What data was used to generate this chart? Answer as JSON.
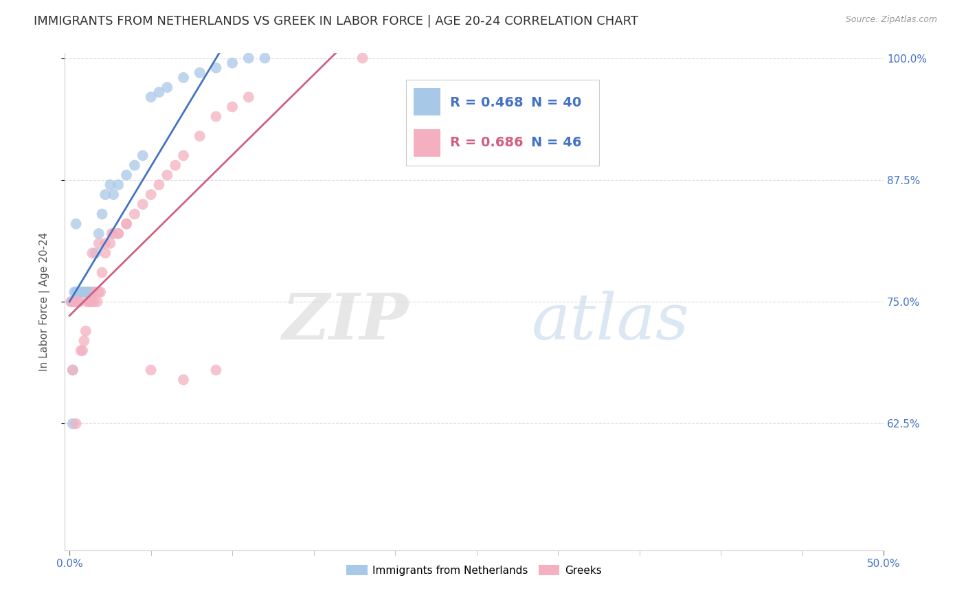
{
  "title": "IMMIGRANTS FROM NETHERLANDS VS GREEK IN LABOR FORCE | AGE 20-24 CORRELATION CHART",
  "source": "Source: ZipAtlas.com",
  "ylabel_label": "In Labor Force | Age 20-24",
  "xlim": [
    0.0,
    0.5
  ],
  "ylim": [
    0.5,
    1.005
  ],
  "x_tick_left": 0.0,
  "x_tick_right": 0.5,
  "y_ticks": [
    0.625,
    0.75,
    0.875,
    1.0
  ],
  "y_tick_labels_right": [
    "62.5%",
    "75.0%",
    "87.5%",
    "100.0%"
  ],
  "x_tick_labels_bottom": [
    "0.0%",
    "50.0%"
  ],
  "blue_R": 0.468,
  "blue_N": 40,
  "pink_R": 0.686,
  "pink_N": 46,
  "blue_color": "#a8c8e8",
  "pink_color": "#f4b0c0",
  "blue_line_color": "#4472c4",
  "pink_line_color": "#d06080",
  "legend_R_blue_color": "#4472c4",
  "legend_R_pink_color": "#d06080",
  "legend_N_color": "#4472c4",
  "blue_x": [
    0.001,
    0.002,
    0.003,
    0.003,
    0.004,
    0.004,
    0.005,
    0.005,
    0.005,
    0.006,
    0.007,
    0.008,
    0.009,
    0.01,
    0.011,
    0.012,
    0.013,
    0.014,
    0.015,
    0.016,
    0.018,
    0.02,
    0.022,
    0.025,
    0.027,
    0.03,
    0.035,
    0.04,
    0.045,
    0.05,
    0.055,
    0.06,
    0.07,
    0.08,
    0.09,
    0.1,
    0.11,
    0.12,
    0.002,
    0.004
  ],
  "blue_y": [
    0.75,
    0.625,
    0.75,
    0.76,
    0.75,
    0.76,
    0.75,
    0.76,
    0.76,
    0.76,
    0.76,
    0.76,
    0.76,
    0.76,
    0.76,
    0.76,
    0.76,
    0.76,
    0.76,
    0.8,
    0.82,
    0.84,
    0.86,
    0.87,
    0.86,
    0.87,
    0.88,
    0.89,
    0.9,
    0.96,
    0.965,
    0.97,
    0.98,
    0.985,
    0.99,
    0.995,
    1.0,
    1.0,
    0.68,
    0.83
  ],
  "pink_x": [
    0.001,
    0.002,
    0.003,
    0.004,
    0.005,
    0.006,
    0.007,
    0.008,
    0.009,
    0.01,
    0.011,
    0.012,
    0.013,
    0.014,
    0.015,
    0.016,
    0.017,
    0.018,
    0.019,
    0.02,
    0.022,
    0.025,
    0.027,
    0.03,
    0.035,
    0.04,
    0.045,
    0.05,
    0.055,
    0.06,
    0.065,
    0.07,
    0.08,
    0.09,
    0.1,
    0.11,
    0.014,
    0.018,
    0.022,
    0.026,
    0.03,
    0.035,
    0.05,
    0.07,
    0.09,
    0.004
  ],
  "pink_y": [
    0.75,
    0.68,
    0.75,
    0.75,
    0.75,
    0.75,
    0.7,
    0.7,
    0.71,
    0.72,
    0.75,
    0.75,
    0.75,
    0.75,
    0.75,
    0.76,
    0.75,
    0.76,
    0.76,
    0.78,
    0.8,
    0.81,
    0.82,
    0.82,
    0.83,
    0.84,
    0.85,
    0.86,
    0.87,
    0.88,
    0.89,
    0.9,
    0.92,
    0.94,
    0.95,
    0.96,
    0.8,
    0.81,
    0.81,
    0.82,
    0.82,
    0.83,
    0.68,
    0.67,
    0.68,
    0.625
  ],
  "pink_x_far": [
    0.18
  ],
  "pink_y_far": [
    1.0
  ],
  "watermark_zip": "ZIP",
  "watermark_atlas": "atlas",
  "background_color": "#ffffff",
  "grid_color": "#dddddd",
  "title_color": "#333333",
  "tick_label_color": "#4472c4",
  "y_label_color": "#555555",
  "title_fontsize": 13,
  "axis_label_fontsize": 11,
  "tick_fontsize": 11,
  "legend_fontsize": 14
}
